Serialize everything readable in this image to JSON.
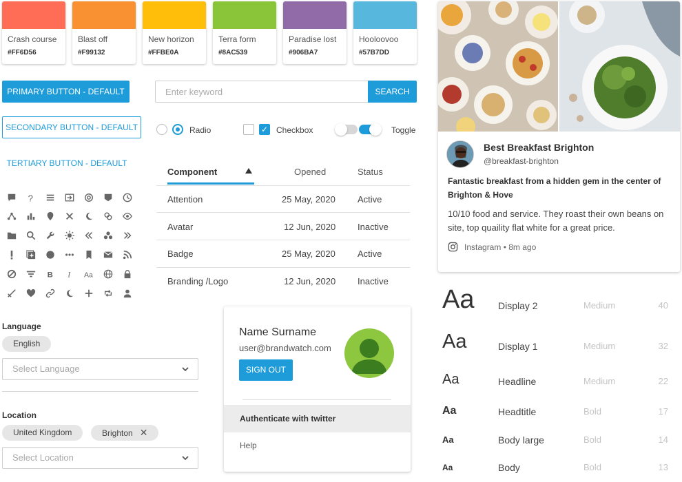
{
  "swatches": [
    {
      "name": "Crash course",
      "hex": "#FF6D56",
      "color": "#ff6d56"
    },
    {
      "name": "Blast off",
      "hex": "#F99132",
      "color": "#f99132"
    },
    {
      "name": "New horizon",
      "hex": "#FFBE0A",
      "color": "#ffbe0a"
    },
    {
      "name": "Terra form",
      "hex": "#8AC539",
      "color": "#8ac539"
    },
    {
      "name": "Paradise lost",
      "hex": "#906BA7",
      "color": "#906ba7"
    },
    {
      "name": "Hooloovoo",
      "hex": "#57B7DD",
      "color": "#57b7dd"
    }
  ],
  "buttons": {
    "primary": "PRIMARY BUTTON - DEFAULT",
    "secondary": "SECONDARY BUTTON - DEFAULT",
    "tertiary": "TERTIARY BUTTON - DEFAULT"
  },
  "search": {
    "placeholder": "Enter keyword",
    "button": "SEARCH"
  },
  "controls": {
    "radio": "Radio",
    "checkbox": "Checkbox",
    "toggle": "Toggle"
  },
  "table": {
    "headers": [
      "Component",
      "Opened",
      "Status"
    ],
    "rows": [
      {
        "component": "Attention",
        "opened": "25 May, 2020",
        "status": "Active"
      },
      {
        "component": "Avatar",
        "opened": "12 Jun, 2020",
        "status": "Inactive"
      },
      {
        "component": "Badge",
        "opened": "25 May, 2020",
        "status": "Active"
      },
      {
        "component": "Branding /Logo",
        "opened": "12 Jun, 2020",
        "status": "Inactive"
      }
    ]
  },
  "language": {
    "label": "Language",
    "chip": "English",
    "placeholder": "Select Language"
  },
  "location": {
    "label": "Location",
    "chips": [
      "United Kingdom",
      "Brighton"
    ],
    "remove_glyph": "✕",
    "placeholder": "Select Location"
  },
  "profile": {
    "name": "Name Surname",
    "email": "user@brandwatch.com",
    "sign_out": "SIGN OUT",
    "menu": [
      "Authenticate with twitter",
      "Help"
    ]
  },
  "card": {
    "title": "Best Breakfast Brighton",
    "handle": "@breakfast-brighton",
    "headline": "Fantastic breakfast from a hidden gem in the center of Brighton & Hove",
    "body": "10/10 food and service. They roast their own beans on site, top quaility flat white for a great price.",
    "source": "Instagram",
    "time": "• 8m ago"
  },
  "typography": [
    {
      "sample": "Aa",
      "name": "Display 2",
      "weight": "Medium",
      "size": "40"
    },
    {
      "sample": "Aa",
      "name": "Display 1",
      "weight": "Medium",
      "size": "32"
    },
    {
      "sample": "Aa",
      "name": "Headline",
      "weight": "Medium",
      "size": "22"
    },
    {
      "sample": "Aa",
      "name": "Headtitle",
      "weight": "Bold",
      "size": "17"
    },
    {
      "sample": "Aa",
      "name": "Body large",
      "weight": "Bold",
      "size": "14"
    },
    {
      "sample": "Aa",
      "name": "Body",
      "weight": "Bold",
      "size": "13"
    }
  ],
  "icons": [
    "chat-icon",
    "help-icon",
    "menu-icon",
    "exit-icon",
    "at-icon",
    "badge-icon",
    "clock-icon",
    "share-nodes-icon",
    "bar-chart-icon",
    "location-pin-icon",
    "close-icon",
    "moon-icon",
    "link-icon",
    "eye-icon",
    "folder-icon",
    "search-icon",
    "wrench-icon",
    "sun-icon",
    "double-chevron-left-icon",
    "group-icon",
    "double-chevron-right-icon",
    "exclamation-icon",
    "add-box-icon",
    "circle-icon",
    "more-horizontal-icon",
    "bookmark-icon",
    "mail-icon",
    "rss-icon",
    "block-icon",
    "filter-icon",
    "bold-icon",
    "italic-icon",
    "text-size-icon",
    "globe-icon",
    "lock-icon",
    "no-edit-icon",
    "heart-icon",
    "link-alt-icon",
    "moon-alt-icon",
    "add-icon",
    "retweet-icon",
    "user-icon"
  ],
  "colors": {
    "accent": "#1e9bd9",
    "avatar_green": "#8dc63f"
  }
}
